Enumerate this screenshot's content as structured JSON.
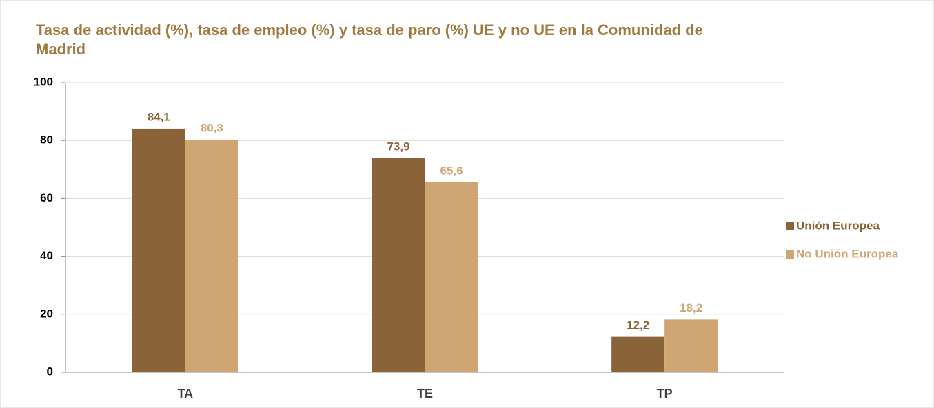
{
  "chart_data": {
    "type": "bar",
    "title": "Tasa de actividad (%), tasa de empleo (%) y tasa de paro (%) UE y no UE  en la Comunidad de Madrid",
    "categories": [
      "TA",
      "TE",
      "TP"
    ],
    "series": [
      {
        "name": "Unión Europea",
        "color": "#8b6339",
        "values": [
          84.1,
          73.9,
          12.2
        ],
        "value_labels": [
          "84,1",
          "73,9",
          "12,2"
        ]
      },
      {
        "name": "No Unión Europea",
        "color": "#cfa574",
        "values": [
          80.3,
          65.6,
          18.2
        ],
        "value_labels": [
          "80,3",
          "65,6",
          "18,2"
        ]
      }
    ],
    "ylim": [
      0,
      100
    ],
    "yticks": [
      0,
      20,
      40,
      60,
      80,
      100
    ],
    "grid": true,
    "legend": "right"
  }
}
